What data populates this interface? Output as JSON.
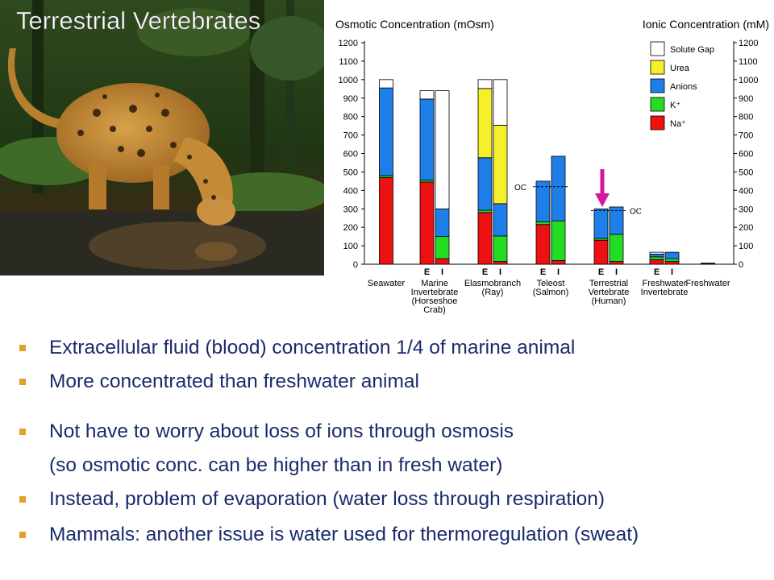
{
  "slide": {
    "title": "Terrestrial Vertebrates"
  },
  "bullets": [
    {
      "text": "Extracellular fluid (blood) concentration 1/4 of marine animal",
      "marker": true
    },
    {
      "text": "More concentrated than freshwater animal",
      "marker": true
    },
    {
      "text": "Not have to worry about loss of ions through osmosis",
      "marker": true
    },
    {
      "text": "(so osmotic conc. can be higher than in fresh water)",
      "marker": false
    },
    {
      "text": "Instead, problem of evaporation (water loss through respiration)",
      "marker": true
    },
    {
      "text": "Mammals: another issue is water used for thermoregulation (sweat)",
      "marker": true
    }
  ],
  "colors": {
    "na": "#ee1111",
    "k": "#22dd22",
    "anions": "#1f7fe8",
    "urea": "#f5f02a",
    "gap": "#ffffff",
    "text": "#1a2a6c",
    "bullet": "#e0a030",
    "arrow": "#d4189a"
  },
  "chart_data": {
    "type": "bar",
    "stacked": true,
    "title_left": "Osmotic Concentration (mOsm)",
    "title_right": "Ionic Concentration (mM)",
    "ylim": [
      0,
      1200
    ],
    "yticks": [
      0,
      100,
      200,
      300,
      400,
      500,
      600,
      700,
      800,
      900,
      1000,
      1100,
      1200
    ],
    "legend": [
      "Solute Gap",
      "Urea",
      "Anions",
      "K⁺",
      "Na⁺"
    ],
    "legend_position": "top-right",
    "stack_order": [
      "Na⁺",
      "K⁺",
      "Anions",
      "Urea",
      "Solute Gap"
    ],
    "groups": [
      {
        "label": [
          "Seawater"
        ],
        "bars": [
          {
            "segments": [
              470,
              10,
              475,
              0,
              45
            ]
          }
        ]
      },
      {
        "label": [
          "Marine",
          "Invertebrate",
          "(Horseshoe",
          "Crab)"
        ],
        "bars": [
          {
            "tag": "E",
            "segments": [
              445,
              10,
              440,
              0,
              45
            ]
          },
          {
            "tag": "I",
            "segments": [
              30,
              120,
              150,
              0,
              640
            ]
          }
        ]
      },
      {
        "label": [
          "Elasmobranch",
          "(Ray)"
        ],
        "bars": [
          {
            "tag": "E",
            "segments": [
              280,
              12,
              285,
              375,
              48
            ]
          },
          {
            "tag": "I",
            "segments": [
              15,
              138,
              175,
              425,
              247
            ]
          }
        ]
      },
      {
        "label": [
          "Teleost",
          "(Salmon)"
        ],
        "bars": [
          {
            "tag": "E",
            "segments": [
              215,
              15,
              220,
              0,
              0
            ]
          },
          {
            "tag": "I",
            "segments": [
              20,
              215,
              350,
              0,
              0
            ]
          }
        ]
      },
      {
        "label": [
          "Terrestrial",
          "Vertebrate",
          "(Human)"
        ],
        "bars": [
          {
            "tag": "E",
            "segments": [
              130,
              10,
              160,
              0,
              0
            ]
          },
          {
            "tag": "I",
            "segments": [
              15,
              147,
              148,
              0,
              0
            ]
          }
        ]
      },
      {
        "label": [
          "Freshwater",
          "Invertebrate"
        ],
        "bars": [
          {
            "tag": "E",
            "segments": [
              25,
              15,
              15,
              0,
              10
            ]
          },
          {
            "tag": "I",
            "segments": [
              15,
              15,
              35,
              0,
              0
            ]
          }
        ]
      },
      {
        "label": [
          "Freshwater"
        ],
        "bars": [
          {
            "segments": [
              3,
              0,
              3,
              0,
              0
            ]
          }
        ]
      }
    ],
    "oc_markers": [
      {
        "group": 3,
        "value": 420,
        "text": "OC"
      },
      {
        "group": 4,
        "value": 290,
        "text": "OC"
      }
    ],
    "highlight_group": 4
  }
}
